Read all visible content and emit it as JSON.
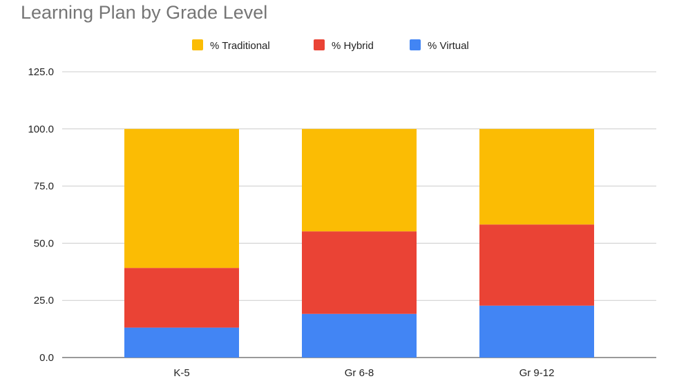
{
  "chart_data": {
    "type": "bar",
    "stacked": true,
    "title": "Learning Plan by Grade Level",
    "xlabel": "",
    "ylabel": "",
    "categories": [
      "K-5",
      "Gr 6-8",
      "Gr 9-12"
    ],
    "series": [
      {
        "name": "% Virtual",
        "color": "#4285f4",
        "values": [
          13.1,
          19.1,
          22.7
        ]
      },
      {
        "name": "% Hybrid",
        "color": "#ea4335",
        "values": [
          26.1,
          36.1,
          35.5
        ]
      },
      {
        "name": "% Traditional",
        "color": "#fbbc04",
        "values": [
          60.8,
          44.8,
          41.8
        ]
      }
    ],
    "legend_order": [
      "% Traditional",
      "% Hybrid",
      "% Virtual"
    ],
    "legend_position": "top",
    "ylim": [
      0,
      125
    ],
    "yticks": [
      "0.0",
      "25.0",
      "50.0",
      "75.0",
      "100.0",
      "125.0"
    ],
    "grid": true
  }
}
